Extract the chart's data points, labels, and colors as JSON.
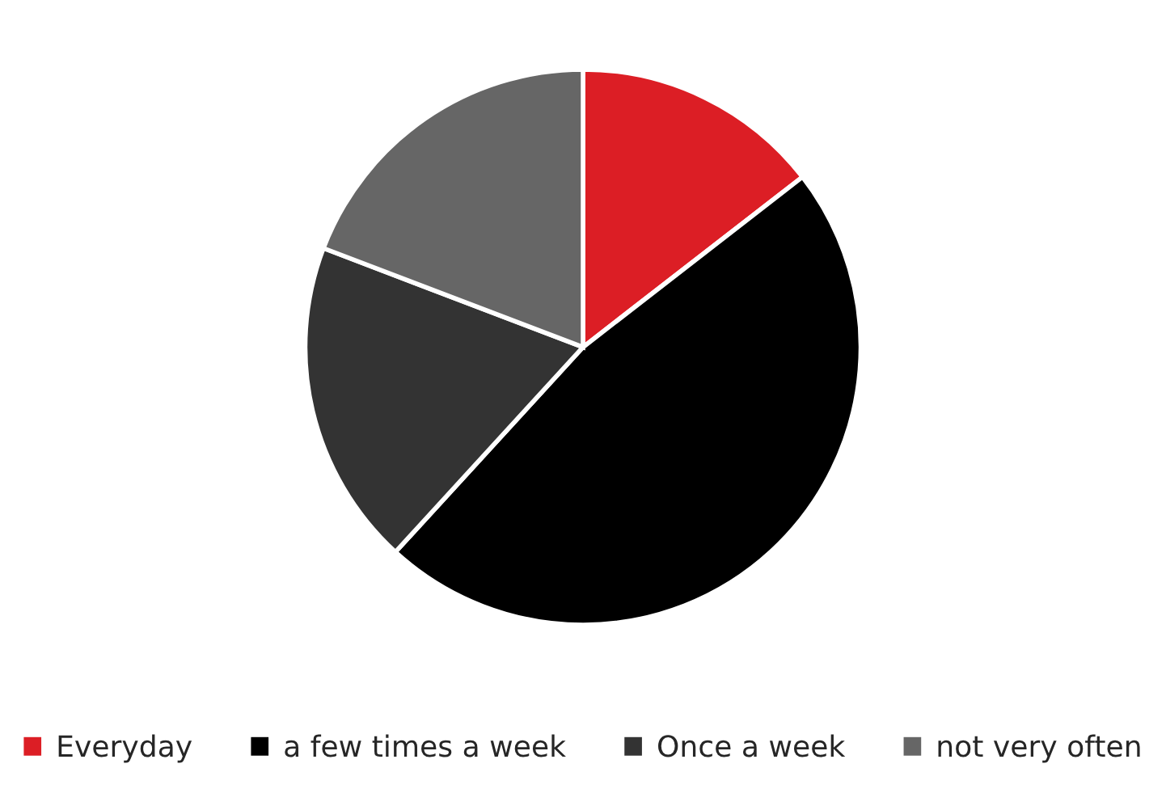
{
  "chart_data": {
    "type": "pie",
    "categories": [
      "Everyday",
      "a few times a week",
      "Once a week",
      "not very often"
    ],
    "values": [
      14.5,
      47.3,
      19.0,
      19.2
    ],
    "colors": [
      "#dc1e25",
      "#000000",
      "#333333",
      "#666666"
    ],
    "legend": "bottom"
  }
}
